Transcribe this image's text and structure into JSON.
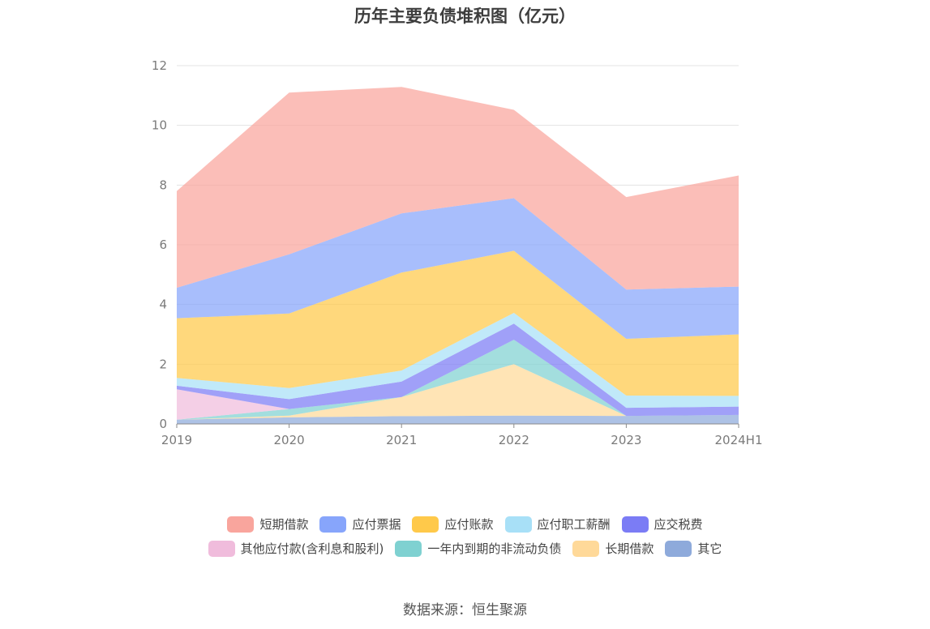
{
  "chart_data": {
    "type": "area",
    "stacked": true,
    "title": "历年主要负债堆积图（亿元）",
    "categories": [
      "2019",
      "2020",
      "2021",
      "2022",
      "2023",
      "2024H1"
    ],
    "ylim": [
      0,
      12
    ],
    "yticks": [
      0,
      2,
      4,
      6,
      8,
      10,
      12
    ],
    "grid": true,
    "legend_position": "bottom",
    "series": [
      {
        "name": "其它",
        "color": "#8eaadb",
        "values": [
          0.14,
          0.22,
          0.26,
          0.28,
          0.27,
          0.3
        ]
      },
      {
        "name": "长期借款",
        "color": "#ffd999",
        "values": [
          0.0,
          0.06,
          0.64,
          1.72,
          0.0,
          0.0
        ]
      },
      {
        "name": "一年内到期的非流动负债",
        "color": "#7fd1d1",
        "values": [
          0.0,
          0.22,
          0.0,
          0.82,
          0.0,
          0.0
        ]
      },
      {
        "name": "其他应付款(含利息和股利)",
        "color": "#f0bcdc",
        "values": [
          1.02,
          0.0,
          0.0,
          0.0,
          0.0,
          0.0
        ]
      },
      {
        "name": "应交税费",
        "color": "#7b7cf5",
        "values": [
          0.12,
          0.33,
          0.52,
          0.54,
          0.27,
          0.28
        ]
      },
      {
        "name": "应付职工薪酬",
        "color": "#a8e0f7",
        "values": [
          0.26,
          0.37,
          0.37,
          0.36,
          0.41,
          0.36
        ]
      },
      {
        "name": "应付账款",
        "color": "#ffc94a",
        "values": [
          2.0,
          2.5,
          3.28,
          2.08,
          1.9,
          2.06
        ]
      },
      {
        "name": "应付票据",
        "color": "#87a5fb",
        "values": [
          1.02,
          1.98,
          1.98,
          1.76,
          1.65,
          1.6
        ]
      },
      {
        "name": "短期借款",
        "color": "#f9a59d",
        "values": [
          3.24,
          5.42,
          4.24,
          2.96,
          3.1,
          3.72
        ]
      }
    ]
  },
  "legend": {
    "rows": [
      [
        "短期借款",
        "应付票据",
        "应付账款",
        "应付职工薪酬",
        "应交税费"
      ],
      [
        "其他应付款(含利息和股利)",
        "一年内到期的非流动负债",
        "长期借款",
        "其它"
      ]
    ]
  },
  "source": "数据来源：恒生聚源"
}
